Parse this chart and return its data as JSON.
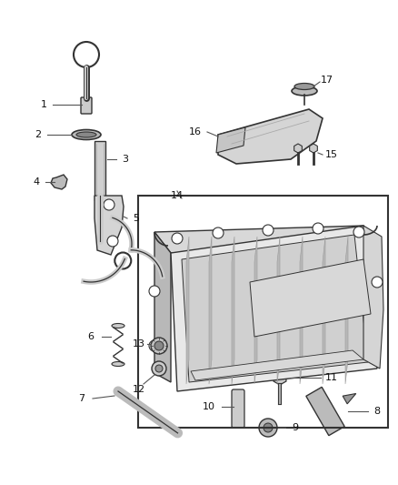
{
  "background_color": "#ffffff",
  "line_color": "#555555",
  "dark_line": "#333333",
  "text_color": "#222222",
  "fill_light": "#eeeeee",
  "fill_mid": "#d8d8d8",
  "fill_dark": "#b8b8b8"
}
